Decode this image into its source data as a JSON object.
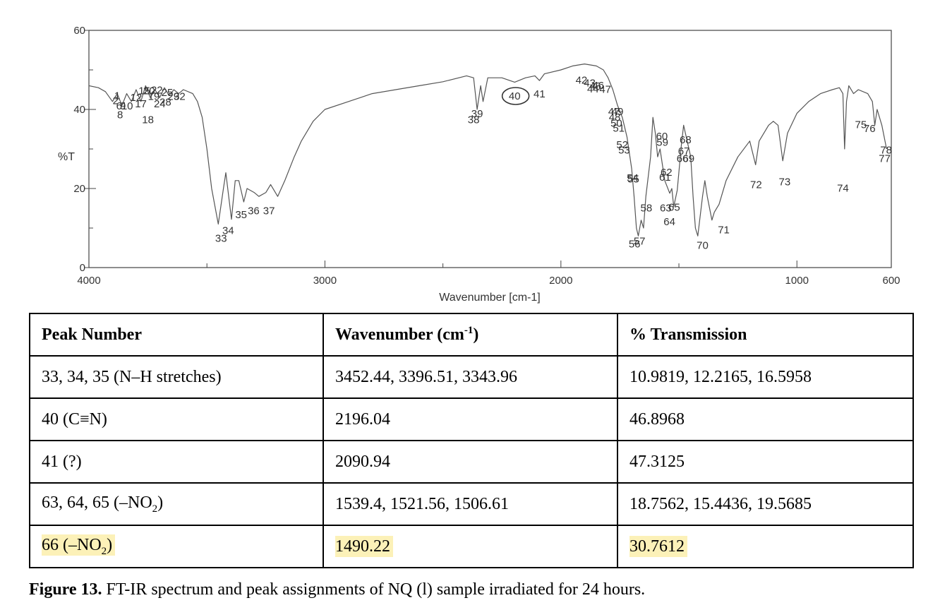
{
  "chart_data": {
    "type": "line",
    "ylabel": "%T",
    "xlabel": "Wavenumber [cm-1]",
    "xlim": [
      4000,
      600
    ],
    "ylim": [
      0,
      60
    ],
    "x_ticks": [
      4000,
      3000,
      2000,
      1000,
      600
    ],
    "y_ticks": [
      0,
      20,
      40,
      60
    ],
    "series": [
      {
        "values": [
          [
            4000,
            46
          ],
          [
            3960,
            45.5
          ],
          [
            3930,
            44.5
          ],
          [
            3900,
            42
          ],
          [
            3880,
            44
          ],
          [
            3860,
            41
          ],
          [
            3840,
            44
          ],
          [
            3820,
            42
          ],
          [
            3800,
            45
          ],
          [
            3780,
            42
          ],
          [
            3760,
            46
          ],
          [
            3740,
            43
          ],
          [
            3720,
            45
          ],
          [
            3700,
            43
          ],
          [
            3680,
            45.5
          ],
          [
            3660,
            43.5
          ],
          [
            3640,
            45
          ],
          [
            3620,
            44
          ],
          [
            3600,
            45
          ],
          [
            3560,
            44
          ],
          [
            3540,
            42
          ],
          [
            3520,
            38
          ],
          [
            3500,
            30
          ],
          [
            3480,
            20
          ],
          [
            3452,
            11
          ],
          [
            3430,
            20
          ],
          [
            3420,
            24
          ],
          [
            3396,
            12.2
          ],
          [
            3380,
            22
          ],
          [
            3365,
            22
          ],
          [
            3344,
            16.6
          ],
          [
            3330,
            20
          ],
          [
            3300,
            19
          ],
          [
            3280,
            18
          ],
          [
            3250,
            19
          ],
          [
            3230,
            21
          ],
          [
            3200,
            18
          ],
          [
            3170,
            22
          ],
          [
            3130,
            28
          ],
          [
            3100,
            32
          ],
          [
            3050,
            37
          ],
          [
            3000,
            40
          ],
          [
            2900,
            42
          ],
          [
            2800,
            44
          ],
          [
            2700,
            45
          ],
          [
            2600,
            46
          ],
          [
            2500,
            47
          ],
          [
            2400,
            48.5
          ],
          [
            2370,
            48
          ],
          [
            2355,
            40
          ],
          [
            2340,
            46
          ],
          [
            2330,
            42
          ],
          [
            2310,
            48
          ],
          [
            2250,
            48
          ],
          [
            2196,
            46.9
          ],
          [
            2150,
            48
          ],
          [
            2110,
            48.5
          ],
          [
            2091,
            47.3
          ],
          [
            2070,
            49
          ],
          [
            2000,
            50
          ],
          [
            1950,
            51
          ],
          [
            1900,
            51.5
          ],
          [
            1850,
            51
          ],
          [
            1820,
            50
          ],
          [
            1800,
            48
          ],
          [
            1780,
            45
          ],
          [
            1760,
            41
          ],
          [
            1740,
            38
          ],
          [
            1720,
            33
          ],
          [
            1700,
            25
          ],
          [
            1690,
            18
          ],
          [
            1680,
            10
          ],
          [
            1672,
            8
          ],
          [
            1660,
            12
          ],
          [
            1650,
            10
          ],
          [
            1640,
            18
          ],
          [
            1620,
            28
          ],
          [
            1610,
            38
          ],
          [
            1600,
            34
          ],
          [
            1590,
            28
          ],
          [
            1580,
            30
          ],
          [
            1560,
            22
          ],
          [
            1539,
            18.8
          ],
          [
            1530,
            20
          ],
          [
            1522,
            15.4
          ],
          [
            1507,
            19.6
          ],
          [
            1490,
            30.8
          ],
          [
            1480,
            36
          ],
          [
            1465,
            32
          ],
          [
            1450,
            28
          ],
          [
            1440,
            18
          ],
          [
            1430,
            10
          ],
          [
            1420,
            8
          ],
          [
            1400,
            18
          ],
          [
            1390,
            22
          ],
          [
            1380,
            18
          ],
          [
            1360,
            12
          ],
          [
            1350,
            14
          ],
          [
            1330,
            16
          ],
          [
            1300,
            22
          ],
          [
            1250,
            28
          ],
          [
            1200,
            32
          ],
          [
            1175,
            26
          ],
          [
            1160,
            32
          ],
          [
            1120,
            36
          ],
          [
            1100,
            37
          ],
          [
            1080,
            36
          ],
          [
            1060,
            27
          ],
          [
            1040,
            34
          ],
          [
            1000,
            39
          ],
          [
            950,
            42
          ],
          [
            900,
            44
          ],
          [
            850,
            45
          ],
          [
            820,
            45.5
          ],
          [
            805,
            44
          ],
          [
            798,
            30
          ],
          [
            790,
            42
          ],
          [
            780,
            46
          ],
          [
            760,
            44
          ],
          [
            740,
            45
          ],
          [
            700,
            44
          ],
          [
            680,
            42
          ],
          [
            670,
            36
          ],
          [
            660,
            40
          ],
          [
            640,
            36
          ],
          [
            620,
            30
          ]
        ]
      }
    ],
    "peak_labels": [
      {
        "text": "1",
        "x": 3880,
        "y": 42.6
      },
      {
        "text": "2",
        "x": 3887,
        "y": 41.3
      },
      {
        "text": "6",
        "x": 3872,
        "y": 40
      },
      {
        "text": "9",
        "x": 3856,
        "y": 40
      },
      {
        "text": "10",
        "x": 3838,
        "y": 40
      },
      {
        "text": "8",
        "x": 3868,
        "y": 37.8
      },
      {
        "text": "12",
        "x": 3800,
        "y": 42.1
      },
      {
        "text": "15",
        "x": 3765,
        "y": 43.8
      },
      {
        "text": "17",
        "x": 3780,
        "y": 40.5
      },
      {
        "text": "18",
        "x": 3750,
        "y": 36.5
      },
      {
        "text": "20",
        "x": 3745,
        "y": 43.8
      },
      {
        "text": "22",
        "x": 3712,
        "y": 44
      },
      {
        "text": "19",
        "x": 3725,
        "y": 42.4
      },
      {
        "text": "24",
        "x": 3700,
        "y": 40.5
      },
      {
        "text": "28",
        "x": 3676,
        "y": 41
      },
      {
        "text": "25",
        "x": 3668,
        "y": 43.4
      },
      {
        "text": "29",
        "x": 3642,
        "y": 42.4
      },
      {
        "text": "32",
        "x": 3616,
        "y": 42.4
      },
      {
        "text": "33",
        "x": 3440,
        "y": 6.5
      },
      {
        "text": "34",
        "x": 3410,
        "y": 8.5
      },
      {
        "text": "35",
        "x": 3355,
        "y": 12.5
      },
      {
        "text": "36",
        "x": 3302,
        "y": 13.5
      },
      {
        "text": "37",
        "x": 3237,
        "y": 13.5
      },
      {
        "text": "38",
        "x": 2370,
        "y": 36.5
      },
      {
        "text": "39",
        "x": 2355,
        "y": 38
      },
      {
        "text": "40",
        "x": 2196,
        "y": 42.5
      },
      {
        "text": "41",
        "x": 2091,
        "y": 43
      },
      {
        "text": "42",
        "x": 1913,
        "y": 46.5
      },
      {
        "text": "43",
        "x": 1878,
        "y": 45.8
      },
      {
        "text": "44",
        "x": 1864,
        "y": 44.3
      },
      {
        "text": "45",
        "x": 1854,
        "y": 45
      },
      {
        "text": "46",
        "x": 1842,
        "y": 45.2
      },
      {
        "text": "47",
        "x": 1812,
        "y": 44.2
      },
      {
        "text": "47",
        "x": 1775,
        "y": 38.6
      },
      {
        "text": "48",
        "x": 1772,
        "y": 37.1
      },
      {
        "text": "49",
        "x": 1760,
        "y": 38.6
      },
      {
        "text": "50",
        "x": 1765,
        "y": 35.6
      },
      {
        "text": "51",
        "x": 1755,
        "y": 34.4
      },
      {
        "text": "52",
        "x": 1740,
        "y": 30.2
      },
      {
        "text": "53",
        "x": 1732,
        "y": 28.8
      },
      {
        "text": "54",
        "x": 1696,
        "y": 21.8
      },
      {
        "text": "55",
        "x": 1693,
        "y": 21.5
      },
      {
        "text": "56",
        "x": 1688,
        "y": 5.1
      },
      {
        "text": "57",
        "x": 1667,
        "y": 5.8
      },
      {
        "text": "58",
        "x": 1638,
        "y": 14.2
      },
      {
        "text": "59",
        "x": 1570,
        "y": 30.8
      },
      {
        "text": "60",
        "x": 1572,
        "y": 32.3
      },
      {
        "text": "61",
        "x": 1559,
        "y": 22
      },
      {
        "text": "62",
        "x": 1553,
        "y": 23.2
      },
      {
        "text": "63",
        "x": 1556,
        "y": 14.2
      },
      {
        "text": "64",
        "x": 1540,
        "y": 10.7
      },
      {
        "text": "65",
        "x": 1520,
        "y": 14.4
      },
      {
        "text": "66",
        "x": 1485,
        "y": 26.7
      },
      {
        "text": "67",
        "x": 1479,
        "y": 28.6
      },
      {
        "text": "68",
        "x": 1472,
        "y": 31.4
      },
      {
        "text": "69",
        "x": 1459,
        "y": 26.7
      },
      {
        "text": "70",
        "x": 1400,
        "y": 4.7
      },
      {
        "text": "71",
        "x": 1310,
        "y": 8.7
      },
      {
        "text": "72",
        "x": 1173,
        "y": 20.1
      },
      {
        "text": "73",
        "x": 1052,
        "y": 20.8
      },
      {
        "text": "74",
        "x": 805,
        "y": 19.2
      },
      {
        "text": "75",
        "x": 729,
        "y": 35.3
      },
      {
        "text": "76",
        "x": 692,
        "y": 34.3
      },
      {
        "text": "78",
        "x": 622,
        "y": 28.8
      },
      {
        "text": "77",
        "x": 628,
        "y": 26.7
      }
    ],
    "annotation": {
      "shape": "circle",
      "target": "40",
      "x": 2192,
      "y": 42.5
    }
  },
  "table": {
    "headers": {
      "col1": "Peak Number",
      "col2_main": "Wavenumber (cm",
      "col2_sup": "-1",
      "col2_end": ")",
      "col3": "% Transmission"
    },
    "rows": [
      {
        "peak": "33, 34, 35 (N–H stretches)",
        "wavenumber": "3452.44, 3396.51, 3343.96",
        "transmission": "10.9819, 12.2165, 16.5958"
      },
      {
        "peak": "40 (C≡N)",
        "wavenumber": "2196.04",
        "transmission": "46.8968"
      },
      {
        "peak": "41 (?)",
        "wavenumber": "2090.94",
        "transmission": "47.3125"
      },
      {
        "peak_main": "63, 64, 65 (–NO",
        "peak_sub": "2",
        "peak_end": ")",
        "wavenumber": "1539.4, 1521.56, 1506.61",
        "transmission": "18.7562, 15.4436, 19.5685"
      },
      {
        "peak_main": "66 (–NO",
        "peak_sub": "2",
        "peak_end": ")",
        "wavenumber": "1490.22",
        "transmission": "30.7612",
        "highlight_color": "#fcf1b8"
      }
    ]
  },
  "caption": {
    "label": "Figure 13.",
    "text": " FT-IR spectrum and peak assignments of NQ (l) sample irradiated for 24 hours."
  }
}
